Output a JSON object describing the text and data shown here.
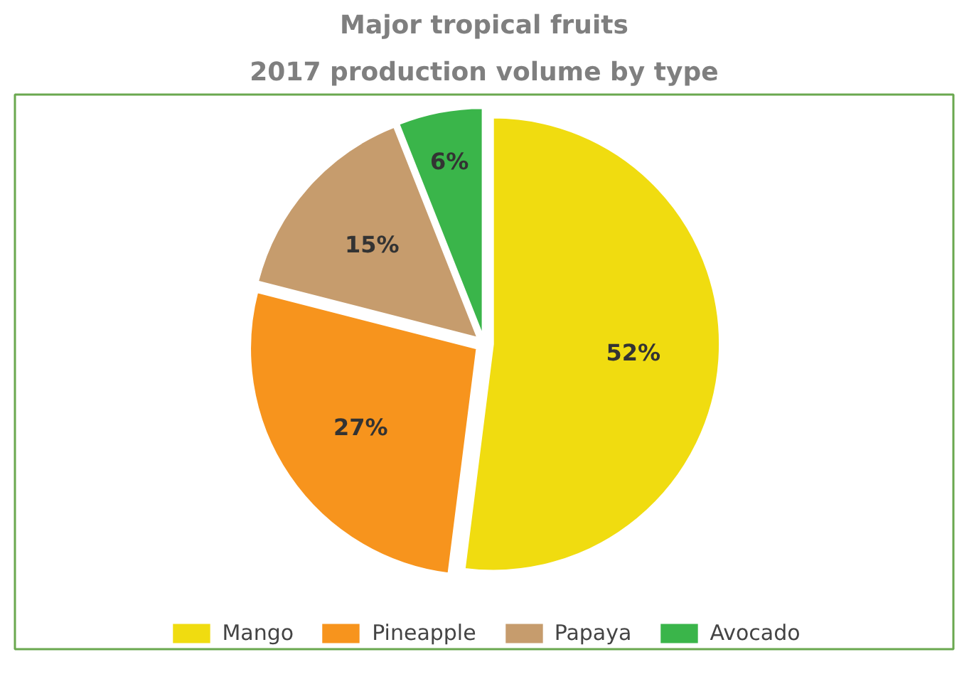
{
  "chart_data": {
    "type": "pie",
    "title": "Major tropical fruits",
    "subtitle": "2017 production volume by type",
    "categories": [
      "Mango",
      "Pineapple",
      "Papaya",
      "Avocado"
    ],
    "values": [
      52,
      27,
      15,
      6
    ],
    "colors": [
      "#f0dc10",
      "#f7941d",
      "#c69c6d",
      "#3ab54a"
    ],
    "value_labels": [
      "52%",
      "27%",
      "15%",
      "6%"
    ],
    "legend": "bottom"
  }
}
